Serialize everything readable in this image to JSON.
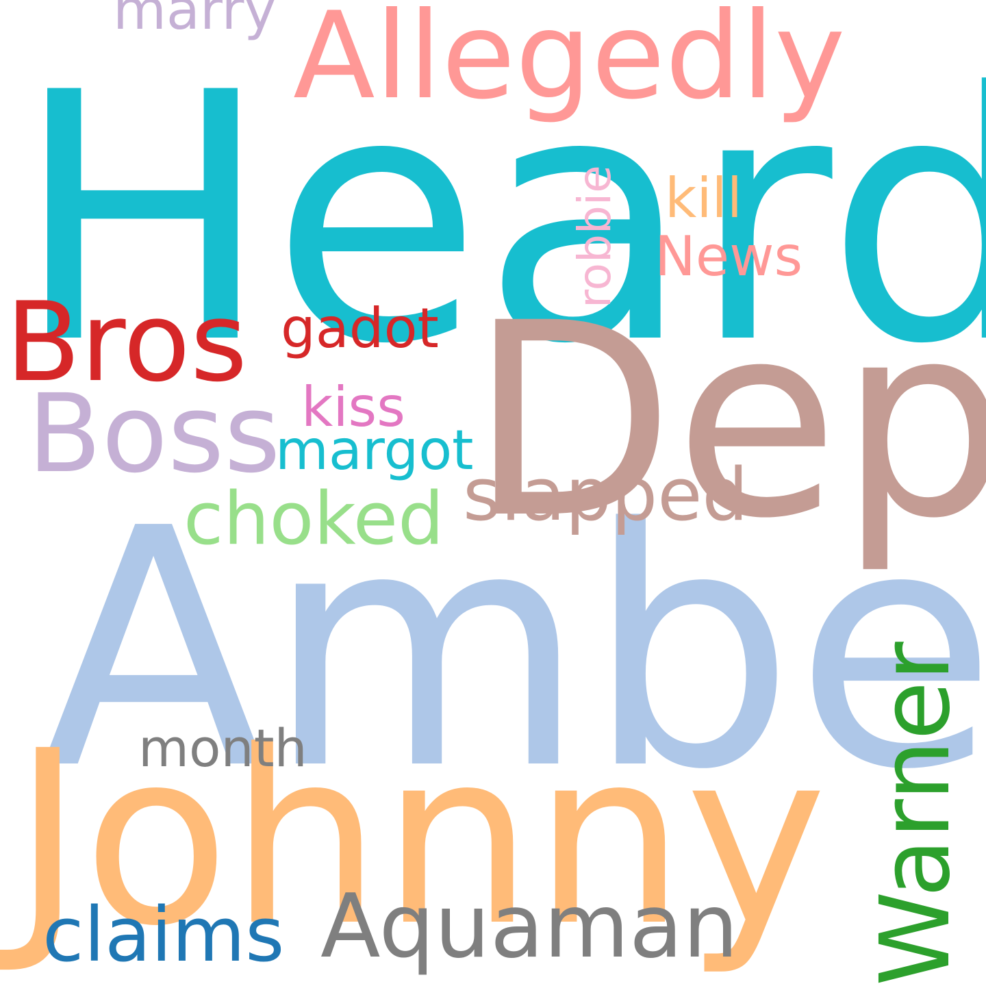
{
  "words": [
    {
      "id": "heard",
      "text": "Heard",
      "color": "#17becf",
      "orientation": "horizontal"
    },
    {
      "id": "amber",
      "text": "Amber",
      "color": "#aec7e8",
      "orientation": "horizontal"
    },
    {
      "id": "depp",
      "text": "Depp",
      "color": "#c49c94",
      "orientation": "horizontal"
    },
    {
      "id": "johnny",
      "text": "Johnny",
      "color": "#ffbb78",
      "orientation": "horizontal"
    },
    {
      "id": "allegedly",
      "text": "Allegedly",
      "color": "#ff9896",
      "orientation": "horizontal"
    },
    {
      "id": "warner",
      "text": "Warner",
      "color": "#2ca02c",
      "orientation": "vertical"
    },
    {
      "id": "bros",
      "text": "Bros",
      "color": "#d62728",
      "orientation": "horizontal"
    },
    {
      "id": "boss",
      "text": "Boss",
      "color": "#c5b0d5",
      "orientation": "horizontal"
    },
    {
      "id": "aquaman",
      "text": "Aquaman",
      "color": "#7f7f7f",
      "orientation": "horizontal"
    },
    {
      "id": "claims",
      "text": "claims",
      "color": "#1f77b4",
      "orientation": "horizontal"
    },
    {
      "id": "slapped",
      "text": "slapped",
      "color": "#c49c94",
      "orientation": "horizontal"
    },
    {
      "id": "choked",
      "text": "choked",
      "color": "#98df8a",
      "orientation": "horizontal"
    },
    {
      "id": "news",
      "text": "News",
      "color": "#ff9896",
      "orientation": "horizontal"
    },
    {
      "id": "kill",
      "text": "kill",
      "color": "#ffbb78",
      "orientation": "horizontal"
    },
    {
      "id": "robbie",
      "text": "robbie",
      "color": "#f7b6d2",
      "orientation": "vertical"
    },
    {
      "id": "gadot",
      "text": "gadot",
      "color": "#d62728",
      "orientation": "horizontal"
    },
    {
      "id": "kiss",
      "text": "kiss",
      "color": "#e377c2",
      "orientation": "horizontal"
    },
    {
      "id": "margot",
      "text": "margot",
      "color": "#17becf",
      "orientation": "horizontal"
    },
    {
      "id": "month",
      "text": "month",
      "color": "#7f7f7f",
      "orientation": "horizontal"
    },
    {
      "id": "marry",
      "text": "marry",
      "color": "#c5b0d5",
      "orientation": "horizontal"
    }
  ]
}
